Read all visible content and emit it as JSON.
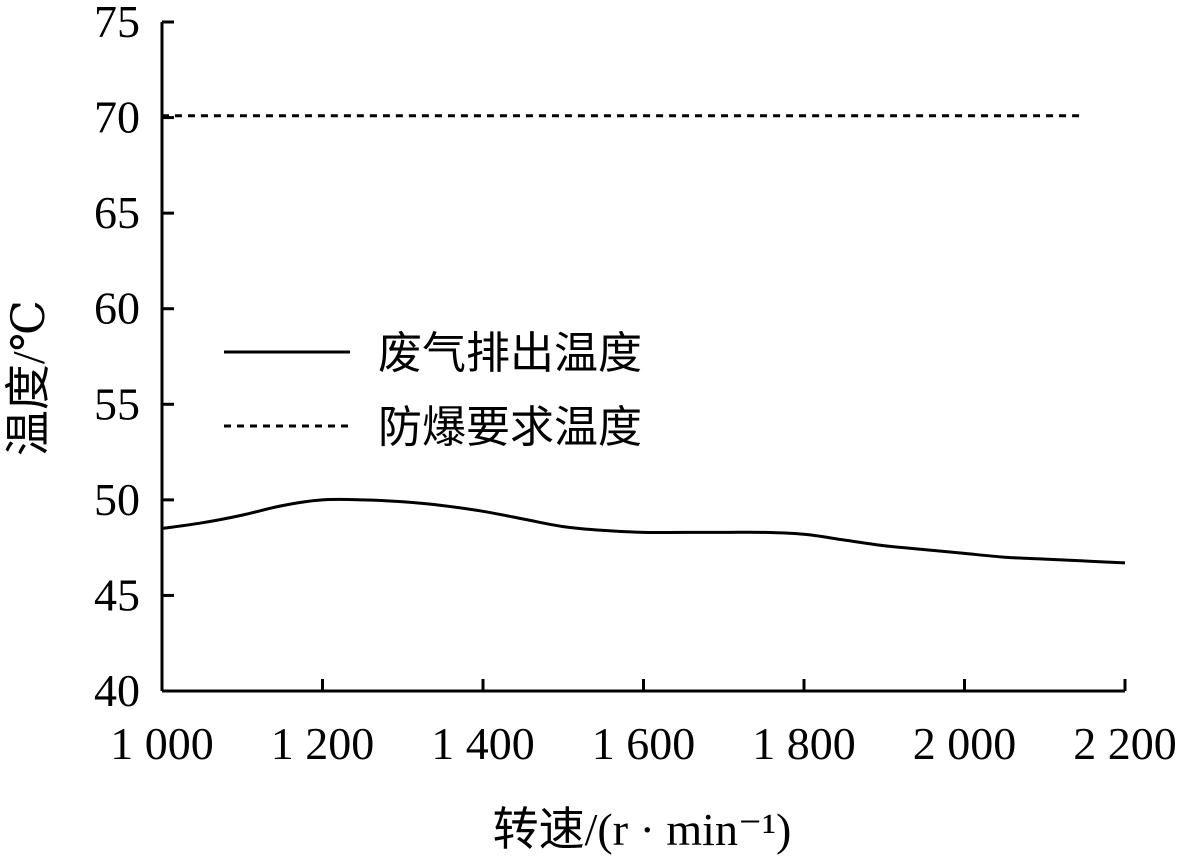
{
  "chart_data": {
    "type": "line",
    "title": "",
    "xlabel": "转速/(r · min⁻¹)",
    "ylabel": "温度/℃",
    "xlim": [
      1000,
      2200
    ],
    "ylim": [
      40,
      75
    ],
    "x_ticks": [
      1000,
      1200,
      1400,
      1600,
      1800,
      2000,
      2200
    ],
    "x_tick_labels": [
      "1 000",
      "1 200",
      "1 400",
      "1 600",
      "1 800",
      "2 000",
      "2 200"
    ],
    "y_ticks": [
      40,
      45,
      50,
      55,
      60,
      65,
      70,
      75
    ],
    "y_tick_labels": [
      "40",
      "45",
      "50",
      "55",
      "60",
      "65",
      "70",
      "75"
    ],
    "grid": false,
    "legend_position": "center-left",
    "series": [
      {
        "name": "废气排出温度",
        "style": "solid",
        "color": "#000000",
        "x": [
          1000,
          1050,
          1100,
          1150,
          1200,
          1250,
          1300,
          1350,
          1400,
          1450,
          1500,
          1550,
          1600,
          1650,
          1700,
          1750,
          1800,
          1850,
          1900,
          1950,
          2000,
          2050,
          2100,
          2150,
          2200
        ],
        "y": [
          48.5,
          48.8,
          49.2,
          49.7,
          50.0,
          50.0,
          49.9,
          49.7,
          49.4,
          49.0,
          48.6,
          48.4,
          48.3,
          48.3,
          48.3,
          48.3,
          48.2,
          47.9,
          47.6,
          47.4,
          47.2,
          47.0,
          46.9,
          46.8,
          46.7
        ]
      },
      {
        "name": "防爆要求温度",
        "style": "dashed",
        "color": "#000000",
        "x": [
          1000,
          2150
        ],
        "y": [
          70.1,
          70.1
        ]
      }
    ]
  }
}
